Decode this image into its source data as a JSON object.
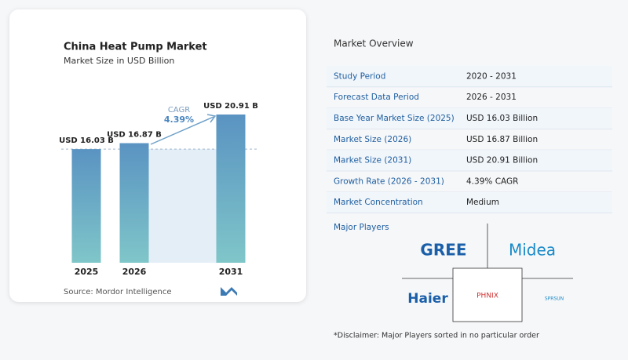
{
  "chart_data": {
    "type": "bar",
    "title": "China Heat Pump Market",
    "subtitle": "Market Size in USD Billion",
    "categories": [
      "2025",
      "2026",
      "2031"
    ],
    "values": [
      16.03,
      16.87,
      20.91
    ],
    "value_labels": [
      "USD 16.03 B",
      "USD 16.87 B",
      "USD 20.91 B"
    ],
    "cagr_label": "CAGR",
    "cagr_value": "4.39%",
    "source": "Source:  Mordor Intelligence"
  },
  "overview": {
    "title": "Market Overview",
    "rows": [
      [
        "Study Period",
        "2020 - 2031"
      ],
      [
        "Forecast Data Period",
        "2026 - 2031"
      ],
      [
        "Base Year Market Size (2025)",
        "USD 16.03 Billion"
      ],
      [
        "Market Size (2026)",
        "USD 16.87 Billion"
      ],
      [
        "Market Size (2031)",
        "USD 20.91 Billion"
      ],
      [
        "Growth Rate (2026 - 2031)",
        "4.39% CAGR"
      ],
      [
        "Market Concentration",
        "Medium"
      ]
    ]
  },
  "players": {
    "title": "Major Players",
    "names": [
      "GREE",
      "Midea",
      "Haier",
      "PHNIX",
      "SPRSUN"
    ]
  },
  "disclaimer": "*Disclaimer: Major Players sorted in no particular order"
}
